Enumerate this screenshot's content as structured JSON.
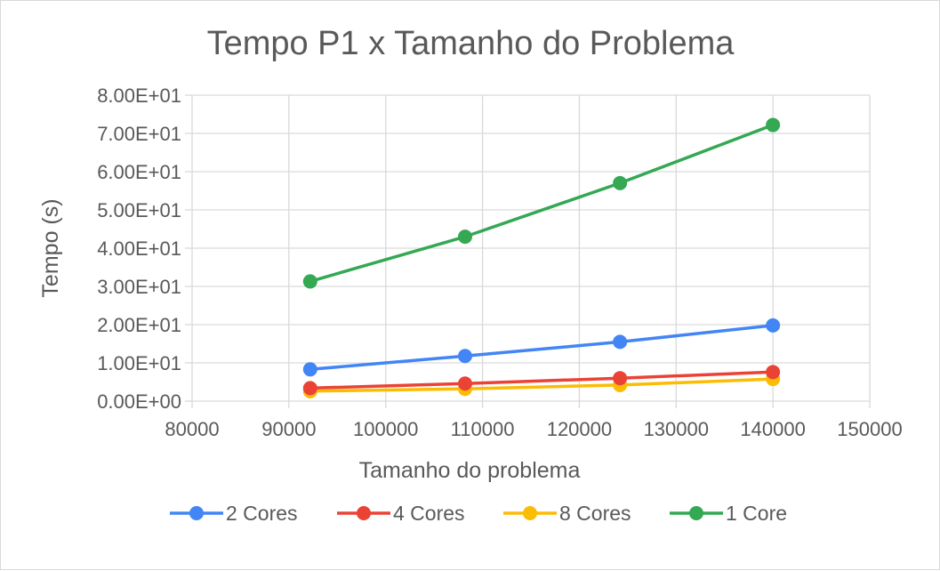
{
  "chart_data": {
    "type": "scatter",
    "title": "Tempo P1 x Tamanho do Problema",
    "xlabel": "Tamanho do problema",
    "ylabel": "Tempo (s)",
    "xlim": [
      80000,
      150000
    ],
    "ylim": [
      0,
      80
    ],
    "x_ticks": [
      80000,
      90000,
      100000,
      110000,
      120000,
      130000,
      140000,
      150000
    ],
    "x_tick_labels": [
      "80000",
      "90000",
      "100000",
      "110000",
      "120000",
      "130000",
      "140000",
      "150000"
    ],
    "y_ticks": [
      0,
      10,
      20,
      30,
      40,
      50,
      60,
      70,
      80
    ],
    "y_tick_labels": [
      "0.00E+00",
      "1.00E+01",
      "2.00E+01",
      "3.00E+01",
      "4.00E+01",
      "5.00E+01",
      "6.00E+01",
      "7.00E+01",
      "8.00E+01"
    ],
    "grid": true,
    "legend_position": "bottom",
    "x": [
      92200,
      108200,
      124200,
      140000
    ],
    "series": [
      {
        "name": "2 Cores",
        "color": "#4285f4",
        "values": [
          8.3,
          11.8,
          15.5,
          19.8
        ]
      },
      {
        "name": "4 Cores",
        "color": "#ea4335",
        "values": [
          3.4,
          4.6,
          6.0,
          7.6
        ]
      },
      {
        "name": "8 Cores",
        "color": "#fbbc04",
        "values": [
          2.6,
          3.2,
          4.2,
          5.8
        ]
      },
      {
        "name": "1 Core",
        "color": "#34a853",
        "values": [
          31.3,
          43.0,
          57.0,
          72.2
        ]
      }
    ]
  }
}
